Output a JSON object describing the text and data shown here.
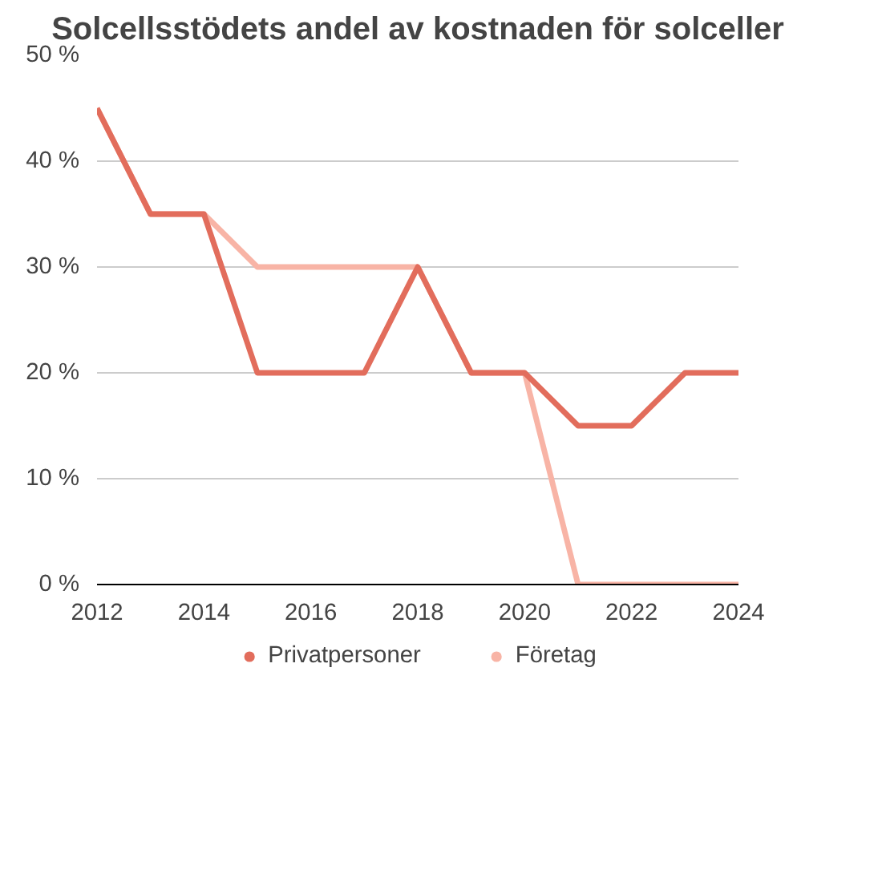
{
  "chart_data": {
    "type": "line",
    "title": "Solcellsstödets andel av kostnaden för solceller",
    "x": [
      2012,
      2013,
      2014,
      2015,
      2016,
      2017,
      2018,
      2019,
      2020,
      2021,
      2022,
      2023,
      2024
    ],
    "series": [
      {
        "name": "Företag",
        "color": "#f8b4a6",
        "values": [
          45,
          35,
          35,
          30,
          30,
          30,
          30,
          20,
          20,
          0,
          0,
          0,
          0
        ]
      },
      {
        "name": "Privatpersoner",
        "color": "#e26d5c",
        "values": [
          45,
          35,
          35,
          20,
          20,
          20,
          30,
          20,
          20,
          15,
          15,
          20,
          20
        ]
      }
    ],
    "xlim": [
      2012,
      2024
    ],
    "xticks": [
      2012,
      2014,
      2016,
      2018,
      2020,
      2022,
      2024
    ],
    "ylim": [
      0,
      50
    ],
    "yticks": [
      {
        "value": 0,
        "label": "0 %"
      },
      {
        "value": 10,
        "label": "10 %"
      },
      {
        "value": 20,
        "label": "20 %"
      },
      {
        "value": 30,
        "label": "30 %"
      },
      {
        "value": 40,
        "label": "40 %"
      },
      {
        "value": 50,
        "label": "50 %"
      }
    ],
    "grid": "y",
    "legend": "bottom",
    "line_style": "solid",
    "marker": "none"
  }
}
